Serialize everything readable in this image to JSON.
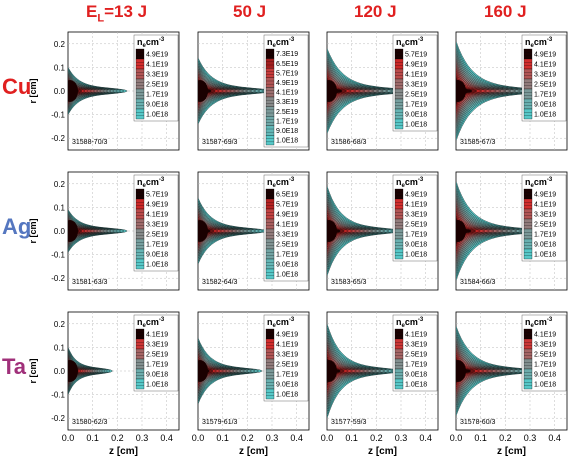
{
  "header": {
    "energy_prefix": "E",
    "energy_subscript": "L",
    "energy_first": "=13 J",
    "energies": [
      "50 J",
      "120 J",
      "160 J"
    ]
  },
  "rows": [
    {
      "label": "Cu",
      "color": "#e02020"
    },
    {
      "label": "Ag",
      "color": "#5577c0"
    },
    {
      "label": "Ta",
      "color": "#a0307a"
    }
  ],
  "axes": {
    "xlabel": "z [cm]",
    "ylabel": "r [cm]",
    "x_ticks": [
      "0.0",
      "0.1",
      "0.2",
      "0.3",
      "0.4"
    ],
    "y_ticks": [
      "0.2",
      "0.1",
      "0.0",
      "-0.1",
      "-0.2"
    ],
    "xlim": [
      0.0,
      0.45
    ],
    "ylim": [
      -0.25,
      0.25
    ]
  },
  "legend": {
    "title_n": "n",
    "title_sub": "e",
    "title_unit": "cm",
    "title_sup": "-3"
  },
  "colors": {
    "high": "#1a0000",
    "red": "#d42a2a",
    "mid": "#888888",
    "cyan": "#56c8c8",
    "outline": "#000000"
  },
  "chart_data": [
    {
      "type": "heatmap",
      "material": "Cu",
      "energy": "13 J",
      "shot": "31588-70/3",
      "legend_levels": [
        "4.9E19",
        "4.1E19",
        "3.3E19",
        "2.5E19",
        "1.7E19",
        "9.0E18",
        "1.0E18"
      ],
      "plume_length_cm": 0.24,
      "plume_halfwidth_cm": 0.08
    },
    {
      "type": "heatmap",
      "material": "Cu",
      "energy": "50 J",
      "shot": "31587-69/3",
      "legend_levels": [
        "7.3E19",
        "6.5E19",
        "5.7E19",
        "4.9E19",
        "4.1E19",
        "3.3E19",
        "2.5E19",
        "1.7E19",
        "9.0E18",
        "1.0E18"
      ],
      "plume_length_cm": 0.3,
      "plume_halfwidth_cm": 0.12
    },
    {
      "type": "heatmap",
      "material": "Cu",
      "energy": "120 J",
      "shot": "31586-68/3",
      "legend_levels": [
        "5.7E19",
        "4.9E19",
        "4.1E19",
        "3.3E19",
        "2.5E19",
        "1.7E19",
        "9.0E18",
        "1.0E18"
      ],
      "plume_length_cm": 0.34,
      "plume_halfwidth_cm": 0.16
    },
    {
      "type": "heatmap",
      "material": "Cu",
      "energy": "160 J",
      "shot": "31585-67/3",
      "legend_levels": [
        "4.9E19",
        "4.1E19",
        "3.3E19",
        "2.5E19",
        "1.7E19",
        "9.0E18",
        "1.0E18"
      ],
      "plume_length_cm": 0.36,
      "plume_halfwidth_cm": 0.19
    },
    {
      "type": "heatmap",
      "material": "Ag",
      "energy": "13 J",
      "shot": "31581-63/3",
      "legend_levels": [
        "5.7E19",
        "4.9E19",
        "4.1E19",
        "3.3E19",
        "2.5E19",
        "1.7E19",
        "9.0E18",
        "1.0E18"
      ],
      "plume_length_cm": 0.24,
      "plume_halfwidth_cm": 0.07
    },
    {
      "type": "heatmap",
      "material": "Ag",
      "energy": "50 J",
      "shot": "31582-64/3",
      "legend_levels": [
        "6.5E19",
        "5.7E19",
        "4.9E19",
        "4.1E19",
        "3.3E19",
        "2.5E19",
        "1.7E19",
        "9.0E18",
        "1.0E18"
      ],
      "plume_length_cm": 0.28,
      "plume_halfwidth_cm": 0.12
    },
    {
      "type": "heatmap",
      "material": "Ag",
      "energy": "120 J",
      "shot": "31583-65/3",
      "legend_levels": [
        "4.9E19",
        "4.1E19",
        "3.3E19",
        "2.5E19",
        "1.7E19",
        "9.0E18",
        "1.0E18"
      ],
      "plume_length_cm": 0.3,
      "plume_halfwidth_cm": 0.17
    },
    {
      "type": "heatmap",
      "material": "Ag",
      "energy": "160 J",
      "shot": "31584-66/3",
      "legend_levels": [
        "4.9E19",
        "4.1E19",
        "3.3E19",
        "2.5E19",
        "1.7E19",
        "9.0E18",
        "1.0E18"
      ],
      "plume_length_cm": 0.34,
      "plume_halfwidth_cm": 0.19
    },
    {
      "type": "heatmap",
      "material": "Ta",
      "energy": "13 J",
      "shot": "31580-62/3",
      "legend_levels": [
        "4.1E19",
        "3.3E19",
        "2.5E19",
        "1.7E19",
        "9.0E18",
        "1.0E18"
      ],
      "plume_length_cm": 0.18,
      "plume_halfwidth_cm": 0.08
    },
    {
      "type": "heatmap",
      "material": "Ta",
      "energy": "50 J",
      "shot": "31579-61/3",
      "legend_levels": [
        "4.9E19",
        "4.1E19",
        "3.3E19",
        "2.5E19",
        "1.7E19",
        "9.0E18",
        "1.0E18"
      ],
      "plume_length_cm": 0.26,
      "plume_halfwidth_cm": 0.12
    },
    {
      "type": "heatmap",
      "material": "Ta",
      "energy": "120 J",
      "shot": "31577-59/3",
      "legend_levels": [
        "4.1E19",
        "3.3E19",
        "2.5E19",
        "1.7E19",
        "9.0E18",
        "1.0E18"
      ],
      "plume_length_cm": 0.3,
      "plume_halfwidth_cm": 0.18
    },
    {
      "type": "heatmap",
      "material": "Ta",
      "energy": "160 J",
      "shot": "31578-60/3",
      "legend_levels": [
        "4.1E19",
        "3.3E19",
        "2.5E19",
        "1.7E19",
        "9.0E18",
        "1.0E18"
      ],
      "plume_length_cm": 0.33,
      "plume_halfwidth_cm": 0.17
    }
  ]
}
